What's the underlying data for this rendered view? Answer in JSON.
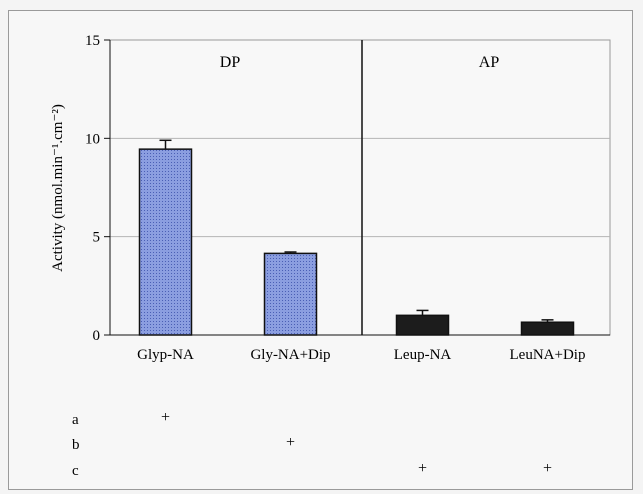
{
  "chart_data": {
    "type": "bar",
    "ylabel": "Activity (nmol.min⁻¹.cm⁻²)",
    "ylim": [
      0,
      15
    ],
    "yticks": [
      0,
      5,
      10,
      15
    ],
    "grid": true,
    "categories": [
      "Glyp-NA",
      "Gly-NA+Dip",
      "Leup-NA",
      "LeuNA+Dip"
    ],
    "values": [
      9.45,
      4.15,
      1.0,
      0.65
    ],
    "errors": [
      0.45,
      0.07,
      0.25,
      0.12
    ],
    "bar_colors": [
      "#7f93d8",
      "#7f93d8",
      "#1c1c1c",
      "#1c1c1c"
    ],
    "panels": [
      {
        "label": "DP",
        "categories": [
          "Glyp-NA",
          "Gly-NA+Dip"
        ]
      },
      {
        "label": "AP",
        "categories": [
          "Leup-NA",
          "LeuNA+Dip"
        ]
      }
    ]
  },
  "conditions": [
    {
      "label": "a",
      "marks": [
        "+",
        "",
        "",
        ""
      ]
    },
    {
      "label": "b",
      "marks": [
        "",
        "+",
        "",
        ""
      ]
    },
    {
      "label": "c",
      "marks": [
        "",
        "",
        "+",
        "+"
      ]
    }
  ]
}
